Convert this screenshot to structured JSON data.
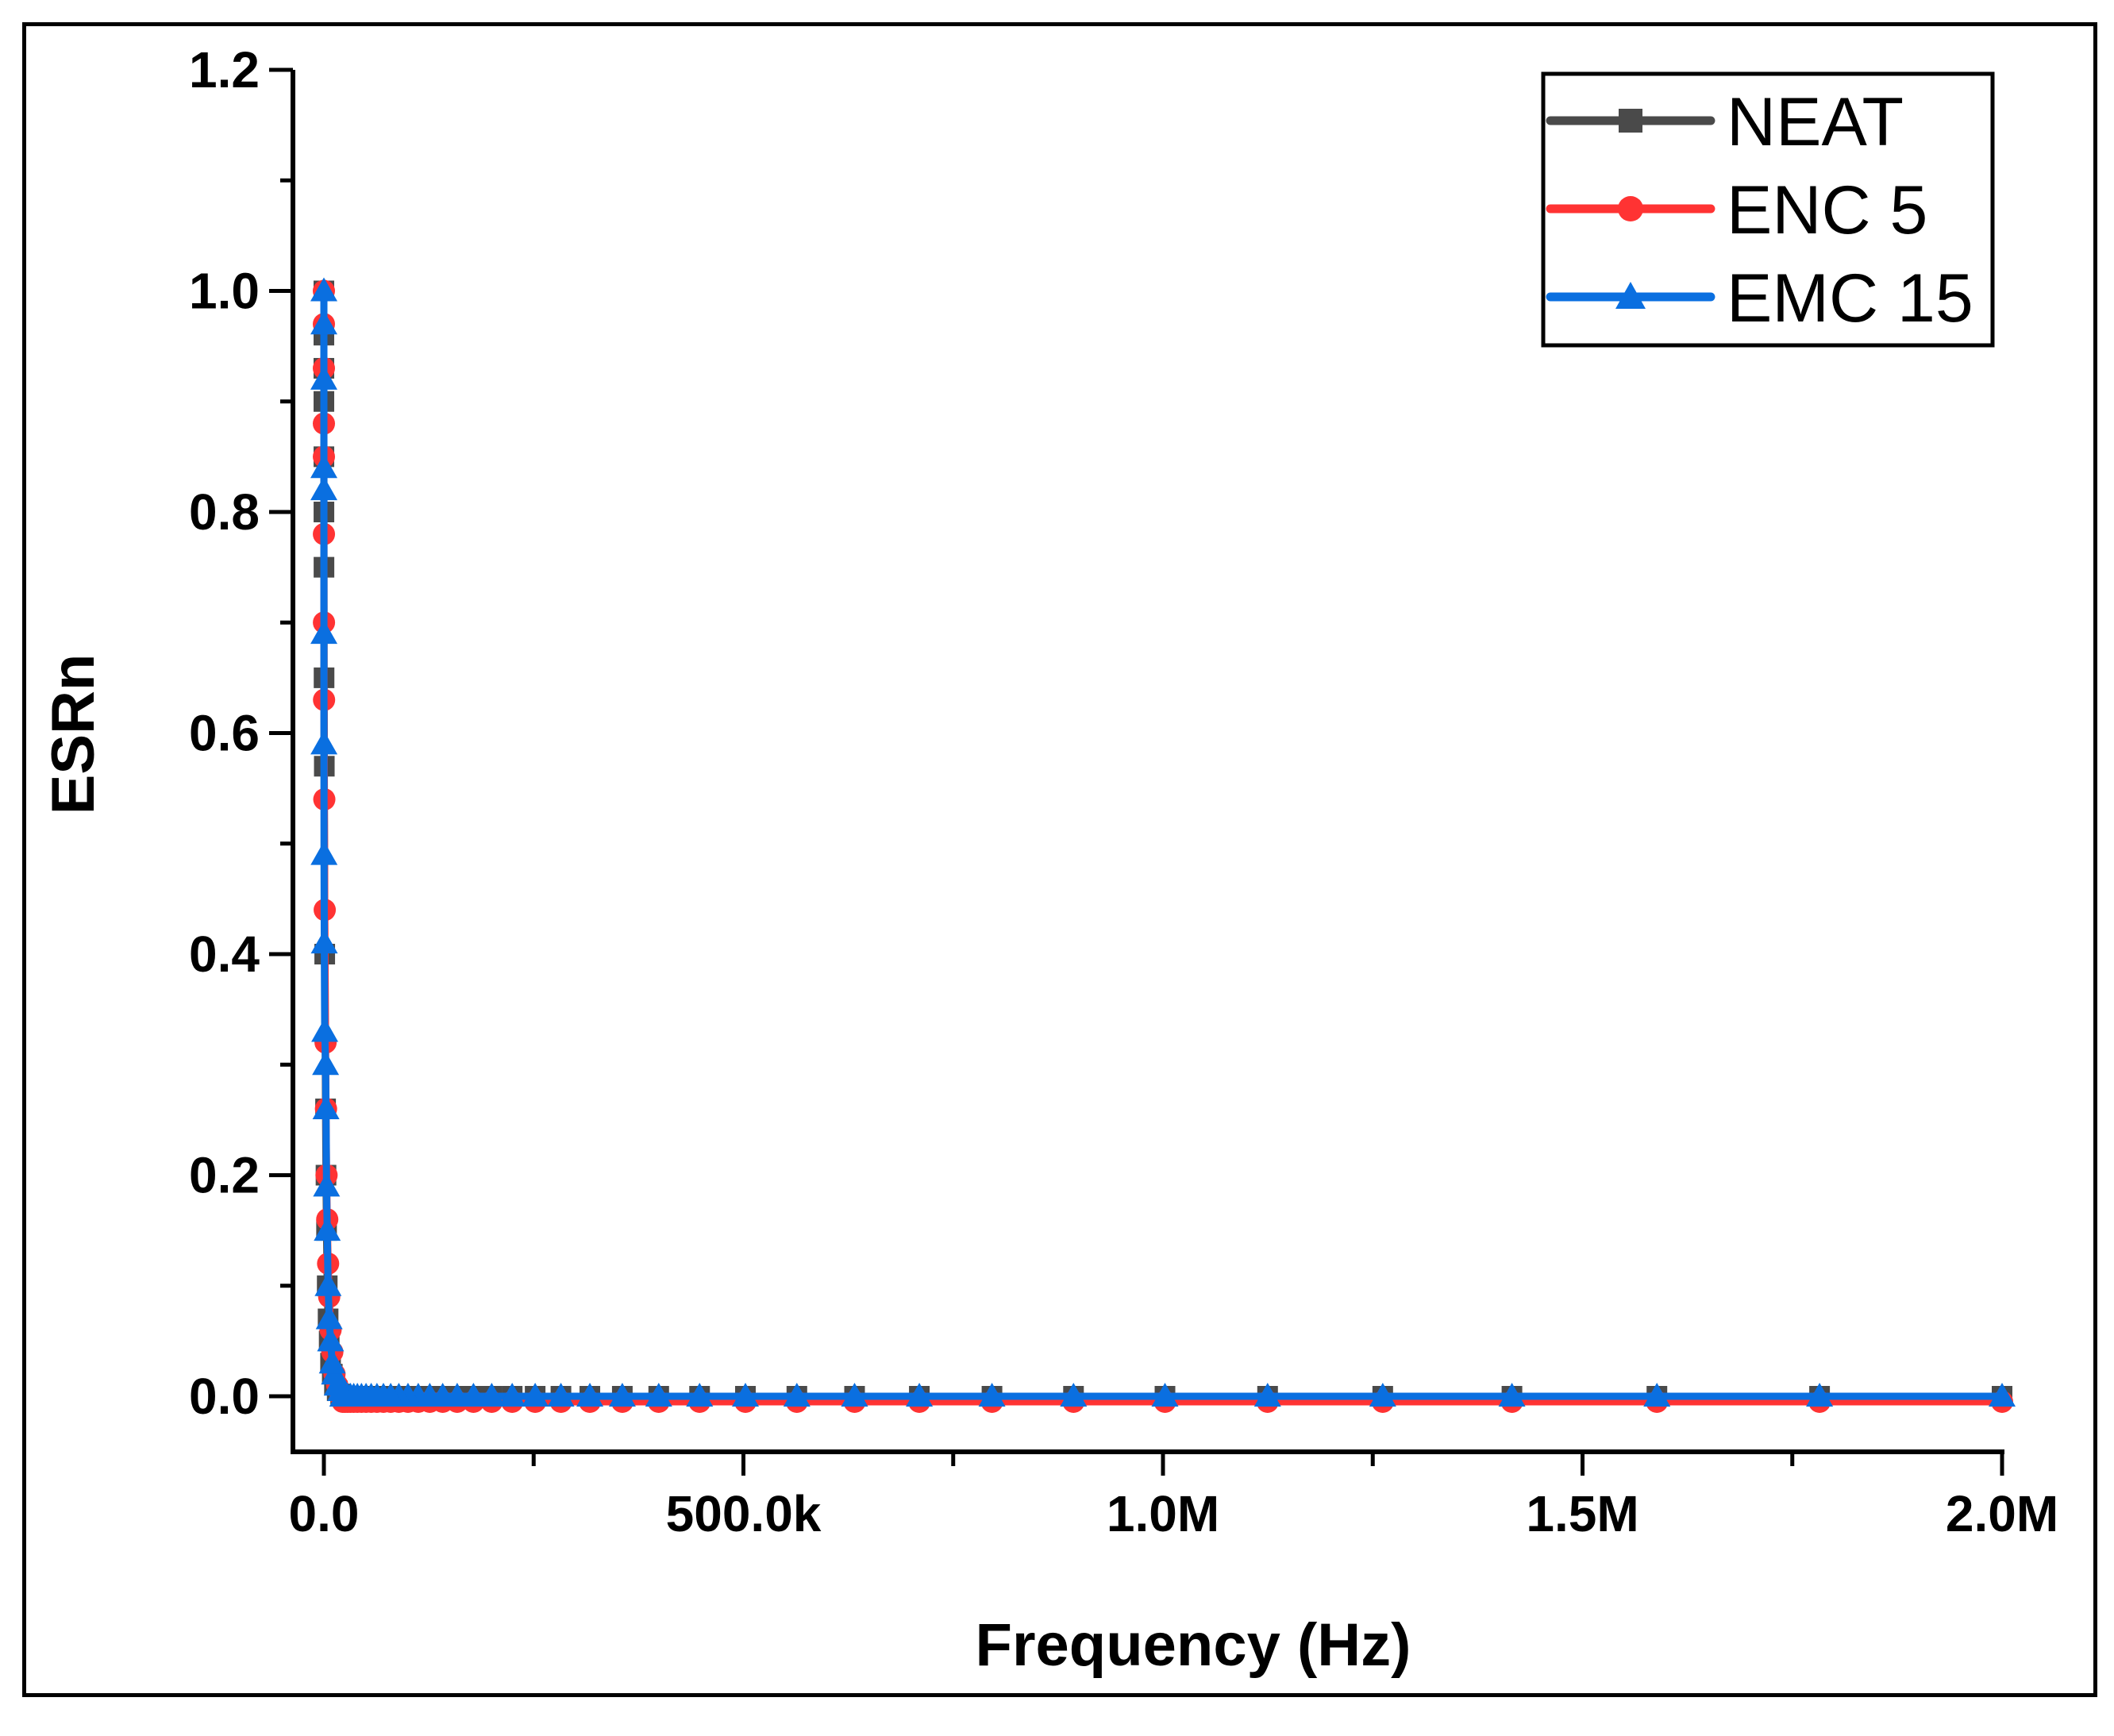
{
  "chart_data": {
    "type": "line",
    "title": "",
    "xlabel": "Frequency (Hz)",
    "ylabel": "ESRn",
    "xlim": [
      -37000,
      2000000
    ],
    "ylim": [
      -0.05,
      1.2
    ],
    "x_ticks": [
      0,
      500000,
      1000000,
      1500000,
      2000000
    ],
    "x_tick_labels": [
      "0.0",
      "500.0k",
      "1.0M",
      "1.5M",
      "2.0M"
    ],
    "y_ticks": [
      0.0,
      0.2,
      0.4,
      0.6,
      0.8,
      1.0,
      1.2
    ],
    "y_tick_labels": [
      "0.0",
      "0.2",
      "0.4",
      "0.6",
      "0.8",
      "1.0",
      "1.2"
    ],
    "grid": false,
    "legend_position": "top-right",
    "x": [
      2000000,
      1782502,
      1588656,
      1415890,
      1261915,
      1124683,
      1002374,
      893367,
      796214,
      709627,
      632456,
      563677,
      502377,
      447744,
      399052,
      355656,
      316979,
      282508,
      251785,
      224404,
      200000,
      178250,
      158866,
      141589,
      126191,
      112468,
      100237,
      89337,
      79621,
      70963,
      63246,
      56368,
      50238,
      44774,
      39905,
      35566,
      31698,
      28251,
      25179,
      22440,
      20000,
      15887,
      12619,
      10024,
      7962,
      6325,
      5024,
      3991,
      3170,
      2518,
      2000,
      1000,
      500,
      200,
      100,
      50,
      20,
      10,
      5,
      2,
      1
    ],
    "series": [
      {
        "name": "NEAT",
        "color": "#4a4a4a",
        "marker": "square",
        "values": [
          0,
          0,
          0,
          0,
          0,
          0,
          0,
          0,
          0,
          0,
          0,
          0,
          0,
          0,
          0,
          0,
          0,
          0,
          0,
          0,
          0,
          0,
          0,
          0,
          0,
          0,
          0,
          0,
          0,
          0,
          0,
          0,
          0,
          0,
          0,
          0,
          0,
          0,
          0,
          0,
          0.002,
          0.005,
          0.01,
          0.02,
          0.03,
          0.05,
          0.07,
          0.1,
          0.15,
          0.2,
          0.26,
          0.4,
          0.57,
          0.65,
          0.75,
          0.8,
          0.85,
          0.9,
          0.93,
          0.96,
          1.0
        ]
      },
      {
        "name": "ENC 5",
        "color": "#ff3333",
        "marker": "circle",
        "values": [
          -0.005,
          -0.005,
          -0.005,
          -0.005,
          -0.005,
          -0.005,
          -0.005,
          -0.005,
          -0.005,
          -0.005,
          -0.005,
          -0.005,
          -0.005,
          -0.005,
          -0.005,
          -0.005,
          -0.005,
          -0.005,
          -0.005,
          -0.005,
          -0.005,
          -0.005,
          -0.005,
          -0.005,
          -0.005,
          -0.005,
          -0.005,
          -0.005,
          -0.005,
          -0.005,
          -0.005,
          -0.005,
          -0.005,
          -0.005,
          -0.005,
          -0.005,
          -0.005,
          -0.005,
          -0.005,
          -0.005,
          0.0,
          0.01,
          0.02,
          0.04,
          0.06,
          0.09,
          0.12,
          0.16,
          0.2,
          0.26,
          0.32,
          0.44,
          0.54,
          0.63,
          0.7,
          0.78,
          0.85,
          0.88,
          0.93,
          0.97,
          1.0
        ]
      },
      {
        "name": "EMC 15",
        "color": "#0a6fe0",
        "marker": "triangle",
        "values": [
          0,
          0,
          0,
          0,
          0,
          0,
          0,
          0,
          0,
          0,
          0,
          0,
          0,
          0,
          0,
          0,
          0,
          0,
          0,
          0,
          0,
          0,
          0,
          0,
          0,
          0,
          0,
          0,
          0,
          0,
          0,
          0,
          0,
          0,
          0,
          0,
          0,
          0,
          0,
          0,
          0.005,
          0.01,
          0.02,
          0.03,
          0.05,
          0.07,
          0.1,
          0.15,
          0.19,
          0.26,
          0.3,
          0.33,
          0.41,
          0.49,
          0.59,
          0.69,
          0.82,
          0.84,
          0.92,
          0.97,
          1.0
        ]
      }
    ]
  }
}
